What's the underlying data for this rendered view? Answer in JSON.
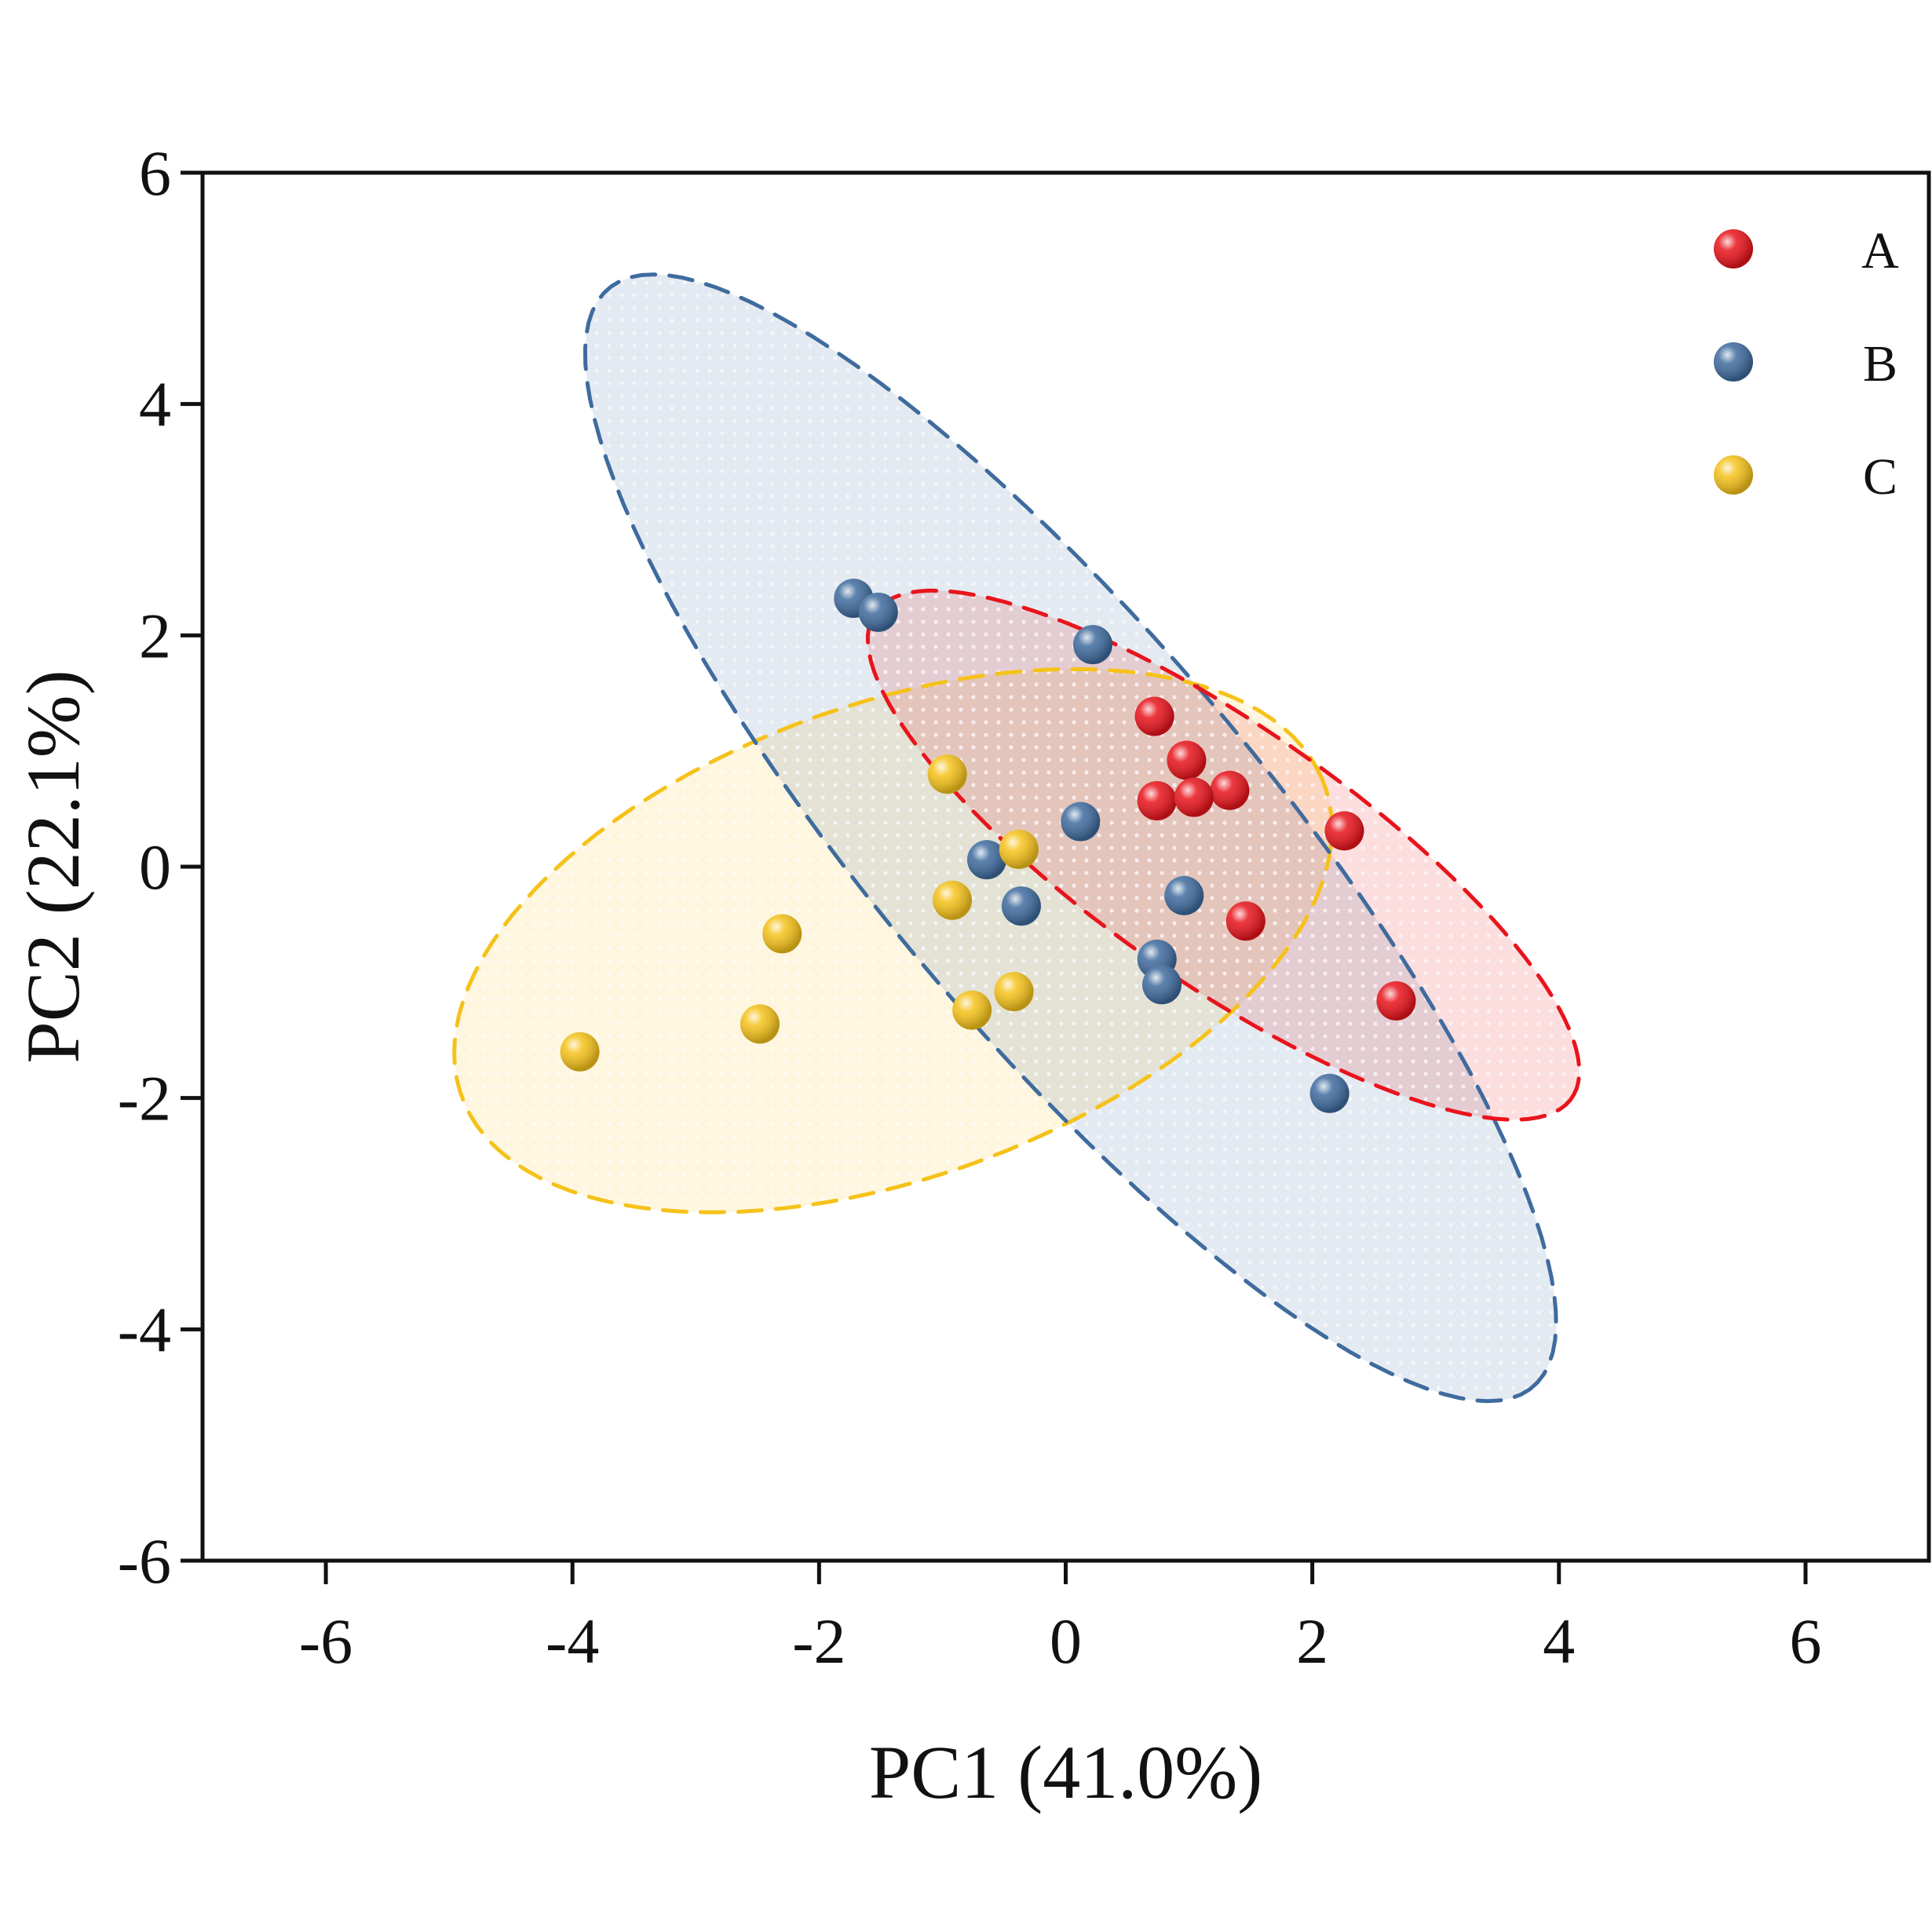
{
  "chart_data": {
    "type": "scatter",
    "title": "",
    "xlabel": "PC1 (41.0%)",
    "ylabel": "PC2 (22.1%)",
    "xlim": [
      -7,
      7
    ],
    "ylim": [
      -6,
      6
    ],
    "xticks": [
      -6,
      -4,
      -2,
      0,
      2,
      4,
      6
    ],
    "yticks": [
      -6,
      -4,
      -2,
      0,
      2,
      4,
      6
    ],
    "xtick_labels": [
      "-6",
      "-4",
      "-2",
      "0",
      "2",
      "4",
      "6"
    ],
    "ytick_labels": [
      "-6",
      "-4",
      "-2",
      "0",
      "2",
      "4",
      "6"
    ],
    "grid": false,
    "legend_position": "top-right",
    "series": [
      {
        "name": "A",
        "color": "#e8141c",
        "points": [
          [
            0.72,
            1.3
          ],
          [
            0.98,
            0.92
          ],
          [
            1.33,
            0.66
          ],
          [
            0.74,
            0.57
          ],
          [
            1.04,
            0.6
          ],
          [
            2.26,
            0.31
          ],
          [
            1.46,
            -0.47
          ],
          [
            2.68,
            -1.16
          ]
        ],
        "ellipse": {
          "center": [
            1.28,
            0.1
          ],
          "semi_axis_major": 3.52,
          "semi_axis_minor": 1.08,
          "angle_deg": -37
        }
      },
      {
        "name": "B",
        "color": "#3f6b9e",
        "points": [
          [
            -1.72,
            2.32
          ],
          [
            -1.52,
            2.2
          ],
          [
            0.22,
            1.92
          ],
          [
            0.12,
            0.39
          ],
          [
            -0.64,
            0.06
          ],
          [
            -0.36,
            -0.34
          ],
          [
            0.96,
            -0.25
          ],
          [
            0.74,
            -0.8
          ],
          [
            0.78,
            -1.02
          ],
          [
            2.14,
            -1.96
          ]
        ],
        "ellipse": {
          "center": [
            0.04,
            0.25
          ],
          "semi_axis_major": 6.05,
          "semi_axis_minor": 1.62,
          "angle_deg": -52
        }
      },
      {
        "name": "C",
        "color": "#f5c21a",
        "points": [
          [
            -0.96,
            0.8
          ],
          [
            -0.38,
            0.15
          ],
          [
            -0.92,
            -0.29
          ],
          [
            -2.3,
            -0.58
          ],
          [
            -0.42,
            -1.08
          ],
          [
            -0.76,
            -1.24
          ],
          [
            -2.48,
            -1.36
          ],
          [
            -3.94,
            -1.6
          ]
        ],
        "ellipse": {
          "center": [
            -1.4,
            -0.64
          ],
          "semi_axis_major": 3.75,
          "semi_axis_minor": 2.03,
          "angle_deg": 22
        }
      }
    ]
  }
}
